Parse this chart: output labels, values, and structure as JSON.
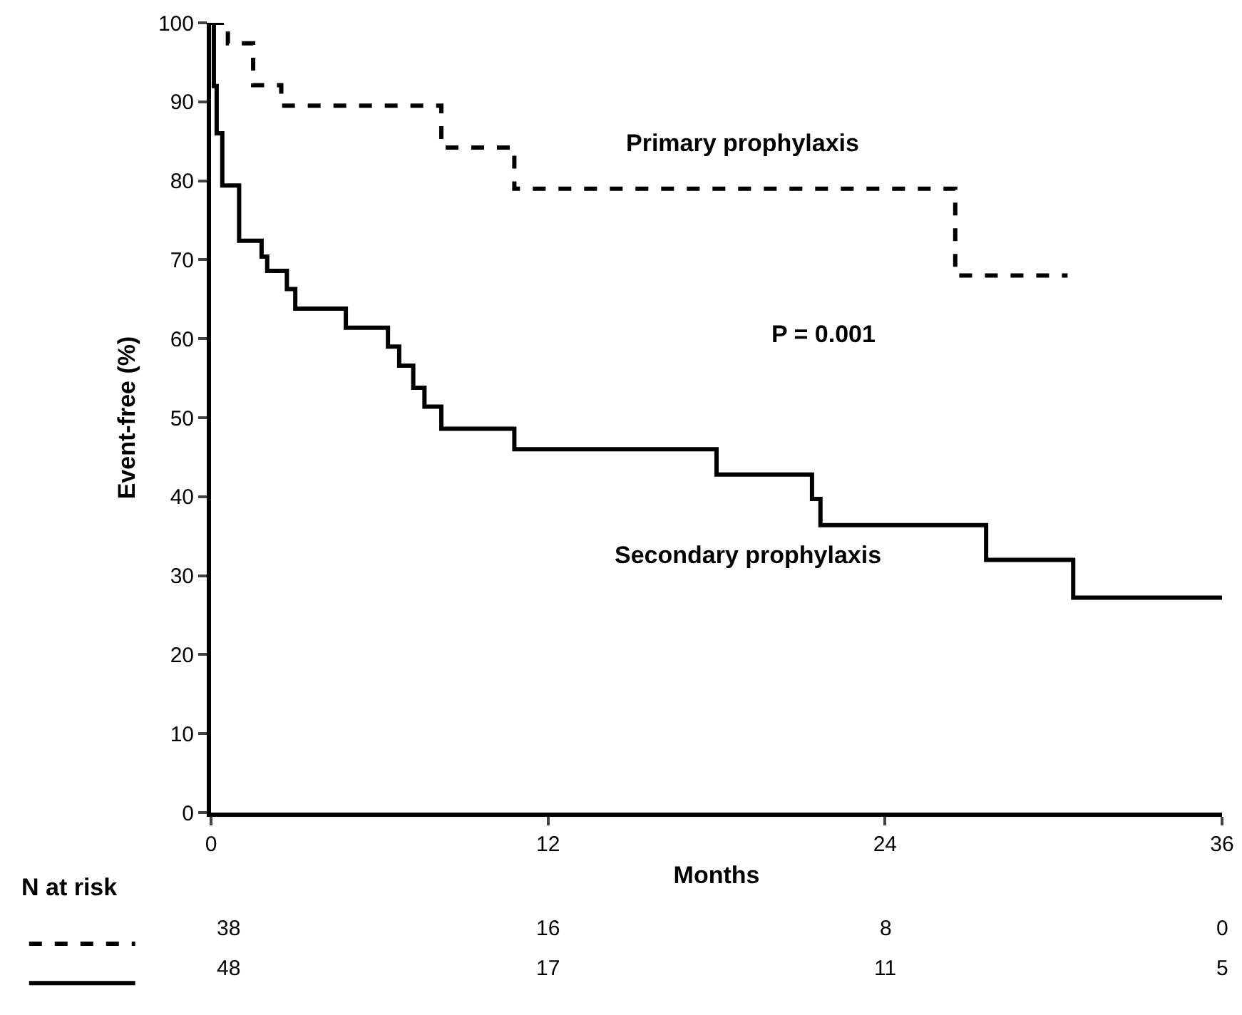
{
  "chart_data": {
    "type": "step",
    "xlabel": "Months",
    "ylabel": "Event-free (%)",
    "xlim": [
      0,
      36
    ],
    "xticks": [
      0,
      12,
      24,
      36
    ],
    "ylim": [
      0,
      100
    ],
    "yticks": [
      0,
      10,
      20,
      30,
      40,
      50,
      60,
      70,
      80,
      90,
      100
    ],
    "grid": false,
    "legend": false,
    "marker": "none",
    "series": [
      {
        "name": "Primary prophylaxis",
        "color": "#000000",
        "line_style": "dashed",
        "x": [
          0,
          0.6,
          1.5,
          2.5,
          8.2,
          10.8,
          26.5,
          30.5
        ],
        "values": [
          100,
          97.4,
          92.1,
          89.5,
          84.2,
          79,
          68,
          68
        ]
      },
      {
        "name": "Secondary prophylaxis",
        "color": "#000000",
        "line_style": "solid",
        "x": [
          0,
          0.1,
          0.2,
          0.4,
          1.0,
          1.8,
          2.0,
          2.7,
          3.0,
          4.8,
          6.3,
          6.7,
          7.2,
          7.6,
          8.2,
          10.8,
          18.0,
          21.4,
          21.7,
          27.6,
          30.7,
          36
        ],
        "values": [
          100,
          92,
          86,
          79.4,
          72.4,
          70.4,
          68.6,
          66.3,
          63.8,
          61.4,
          59,
          56.6,
          53.8,
          51.4,
          48.6,
          46,
          42.8,
          39.7,
          36.4,
          32,
          27.2,
          27.2
        ]
      }
    ],
    "annotations": [
      "P = 0.001",
      "N at risk",
      "38",
      "16",
      "8",
      "0",
      "48",
      "17",
      "11",
      "5"
    ]
  }
}
